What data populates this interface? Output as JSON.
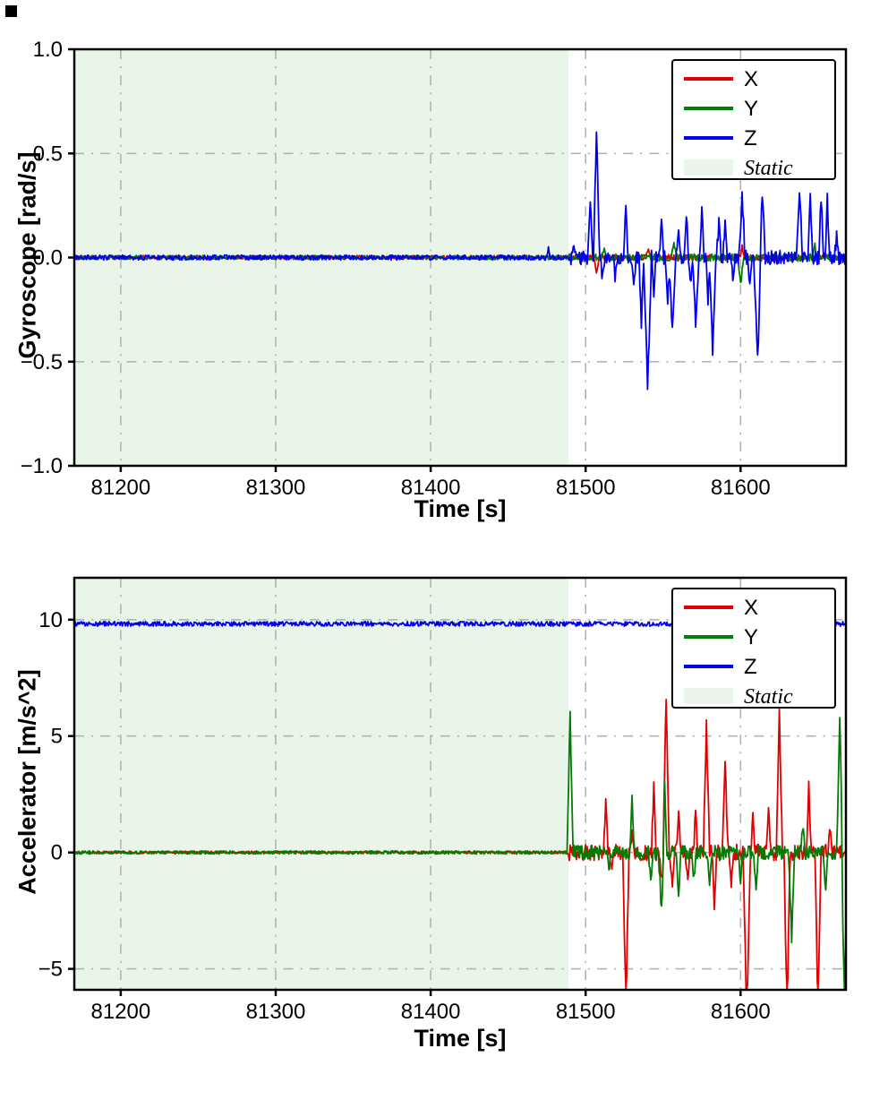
{
  "figure": {
    "background": "#ffffff"
  },
  "corner_artifact": {
    "color": "#000000"
  },
  "chart_data": [
    {
      "type": "line",
      "title": "",
      "xlabel": "Time [s]",
      "ylabel": "Gyroscope [rad/s]",
      "xlim": [
        81170,
        81668
      ],
      "ylim": [
        -1.0,
        1.0
      ],
      "xticks": [
        81200,
        81300,
        81400,
        81500,
        81600
      ],
      "xtick_labels": [
        "81200",
        "81300",
        "81400",
        "81500",
        "81600"
      ],
      "yticks": [
        -1.0,
        -0.5,
        0.0,
        0.5,
        1.0
      ],
      "ytick_labels": [
        "−1.0",
        "−0.5",
        "0.0",
        "0.5",
        "1.0"
      ],
      "grid": true,
      "grid_style": "dash-dot",
      "grid_color": "#b3b3b3",
      "legend": {
        "position": "upper right",
        "entries": [
          {
            "label": "X",
            "type": "line",
            "color": "#e00000",
            "italic": false
          },
          {
            "label": "Y",
            "type": "line",
            "color": "#007d02",
            "italic": false
          },
          {
            "label": "Z",
            "type": "line",
            "color": "#0000ee",
            "italic": false
          },
          {
            "label": "Static",
            "type": "patch",
            "color": "#e9f5e9",
            "italic": true
          }
        ]
      },
      "static_region": {
        "start": 81170,
        "end": 81489,
        "color": "#e9f5e9",
        "label": "Static"
      },
      "series": [
        {
          "name": "X",
          "color": "#e00000",
          "base": 0,
          "noise_static": 0.01,
          "noise_active": 0.014,
          "spikes": [
            [
              81507,
              -0.08,
              1.5
            ],
            [
              81540,
              0.04,
              1.5
            ],
            [
              81601,
              0.05,
              1.5
            ]
          ]
        },
        {
          "name": "Y",
          "color": "#007d02",
          "base": 0,
          "noise_static": 0.01,
          "noise_active": 0.018,
          "spikes": [
            [
              81512,
              0.05,
              1.5
            ],
            [
              81557,
              0.08,
              2
            ],
            [
              81600,
              -0.13,
              2
            ],
            [
              81648,
              0.06,
              1.5
            ]
          ]
        },
        {
          "name": "Z",
          "color": "#0000ee",
          "base": 0,
          "noise_static": 0.012,
          "noise_active": 0.035,
          "spikes": [
            [
              81476,
              0.04,
              1
            ],
            [
              81492,
              0.06,
              1.5
            ],
            [
              81503,
              0.3,
              1.5
            ],
            [
              81507,
              0.61,
              2
            ],
            [
              81511,
              -0.1,
              1.5
            ],
            [
              81519,
              -0.09,
              1.5
            ],
            [
              81526,
              0.24,
              1.5
            ],
            [
              81531,
              -0.13,
              1.5
            ],
            [
              81536,
              -0.31,
              1.5
            ],
            [
              81540,
              -0.64,
              2.5
            ],
            [
              81544,
              -0.18,
              1.5
            ],
            [
              81549,
              0.16,
              1.5
            ],
            [
              81553,
              -0.21,
              1.5
            ],
            [
              81556,
              -0.36,
              2
            ],
            [
              81560,
              0.11,
              1.5
            ],
            [
              81565,
              0.22,
              1.5
            ],
            [
              81568,
              -0.12,
              1.5
            ],
            [
              81571,
              -0.31,
              2
            ],
            [
              81575,
              0.22,
              1.5
            ],
            [
              81579,
              -0.2,
              1.5
            ],
            [
              81582,
              -0.46,
              2
            ],
            [
              81586,
              0.16,
              1.5
            ],
            [
              81590,
              0.18,
              1.5
            ],
            [
              81595,
              -0.09,
              1.5
            ],
            [
              81601,
              0.31,
              2
            ],
            [
              81606,
              -0.12,
              1.5
            ],
            [
              81611,
              -0.48,
              2.5
            ],
            [
              81614,
              0.31,
              2
            ],
            [
              81638,
              0.33,
              2
            ],
            [
              81645,
              0.31,
              1.5
            ],
            [
              81652,
              0.3,
              1.5
            ],
            [
              81656,
              0.28,
              1.5
            ],
            [
              81662,
              0.1,
              1.5
            ]
          ]
        }
      ]
    },
    {
      "type": "line",
      "title": "",
      "xlabel": "Time [s]",
      "ylabel": "Accelerator [m/s^2]",
      "xlim": [
        81170,
        81668
      ],
      "ylim": [
        -5.9,
        11.8
      ],
      "xticks": [
        81200,
        81300,
        81400,
        81500,
        81600
      ],
      "xtick_labels": [
        "81200",
        "81300",
        "81400",
        "81500",
        "81600"
      ],
      "yticks": [
        -5,
        0,
        5,
        10
      ],
      "ytick_labels": [
        "−5",
        "0",
        "5",
        "10"
      ],
      "grid": true,
      "grid_style": "dash-dot",
      "grid_color": "#b3b3b3",
      "legend": {
        "position": "upper right",
        "entries": [
          {
            "label": "X",
            "type": "line",
            "color": "#e00000",
            "italic": false
          },
          {
            "label": "Y",
            "type": "line",
            "color": "#007d02",
            "italic": false
          },
          {
            "label": "Z",
            "type": "line",
            "color": "#0000ee",
            "italic": false
          },
          {
            "label": "Static",
            "type": "patch",
            "color": "#e9f5e9",
            "italic": true
          }
        ]
      },
      "static_region": {
        "start": 81170,
        "end": 81489,
        "color": "#e9f5e9",
        "label": "Static"
      },
      "series": [
        {
          "name": "X",
          "color": "#e00000",
          "base": 0,
          "noise_static": 0.06,
          "noise_active": 0.35,
          "spikes": [
            [
              81513,
              2.2,
              1.5
            ],
            [
              81517,
              -0.9,
              1.5
            ],
            [
              81526,
              -6.8,
              2
            ],
            [
              81530,
              1.0,
              1.5
            ],
            [
              81544,
              2.9,
              1.5
            ],
            [
              81549,
              -1.3,
              1.5
            ],
            [
              81552,
              6.7,
              2
            ],
            [
              81556,
              -1.6,
              1.5
            ],
            [
              81560,
              2.0,
              1.5
            ],
            [
              81566,
              -1.1,
              1.5
            ],
            [
              81571,
              1.6,
              1.5
            ],
            [
              81578,
              5.4,
              2
            ],
            [
              81583,
              -2.3,
              1.5
            ],
            [
              81590,
              4.0,
              2
            ],
            [
              81594,
              -1.6,
              1.5
            ],
            [
              81604,
              -7.0,
              2.5
            ],
            [
              81608,
              1.5,
              1.5
            ],
            [
              81618,
              1.8,
              1.5
            ],
            [
              81625,
              5.9,
              2
            ],
            [
              81630,
              -7.0,
              2
            ],
            [
              81644,
              3.1,
              1.5
            ],
            [
              81650,
              -7.0,
              2
            ],
            [
              81658,
              1.1,
              1.5
            ]
          ]
        },
        {
          "name": "Y",
          "color": "#007d02",
          "base": 0,
          "noise_static": 0.07,
          "noise_active": 0.3,
          "spikes": [
            [
              81490,
              5.8,
              2
            ],
            [
              81515,
              -0.9,
              1.5
            ],
            [
              81530,
              2.2,
              1.5
            ],
            [
              81542,
              -1.1,
              1.5
            ],
            [
              81549,
              -2.6,
              2
            ],
            [
              81551,
              2.9,
              1.5
            ],
            [
              81560,
              -1.9,
              1.5
            ],
            [
              81570,
              -1.2,
              1.5
            ],
            [
              81580,
              -1.6,
              1.5
            ],
            [
              81600,
              -1.1,
              1.5
            ],
            [
              81610,
              -1.4,
              1.5
            ],
            [
              81633,
              -3.6,
              2
            ],
            [
              81640,
              1.2,
              1.5
            ],
            [
              81655,
              -1.6,
              1.5
            ],
            [
              81664,
              5.8,
              2
            ],
            [
              81667,
              -6.5,
              2
            ]
          ]
        },
        {
          "name": "Z",
          "color": "#0000ee",
          "base": 9.82,
          "noise_static": 0.1,
          "noise_active": 0.1,
          "spikes": []
        }
      ]
    }
  ]
}
